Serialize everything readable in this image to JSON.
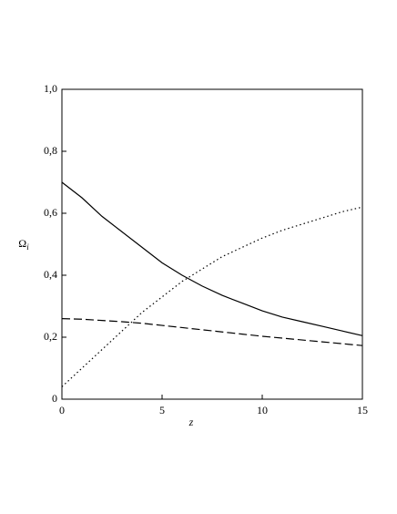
{
  "chart_data": {
    "type": "line",
    "xlabel": "z",
    "ylabel": "Ω",
    "ylabel_subscript": "i",
    "x": [
      0,
      1,
      2,
      3,
      4,
      5,
      6,
      7,
      8,
      9,
      10,
      11,
      12,
      13,
      14,
      15
    ],
    "series": [
      {
        "color": "#000000",
        "dash": "solid",
        "values": [
          0.7,
          0.65,
          0.59,
          0.54,
          0.49,
          0.44,
          0.4,
          0.365,
          0.335,
          0.31,
          0.285,
          0.265,
          0.25,
          0.235,
          0.22,
          0.205
        ]
      },
      {
        "color": "#000000",
        "dash": "dashed",
        "values": [
          0.26,
          0.258,
          0.254,
          0.25,
          0.245,
          0.238,
          0.231,
          0.224,
          0.217,
          0.21,
          0.203,
          0.197,
          0.191,
          0.185,
          0.179,
          0.173
        ]
      },
      {
        "color": "#000000",
        "dash": "dotted",
        "values": [
          0.04,
          0.1,
          0.16,
          0.22,
          0.28,
          0.33,
          0.38,
          0.42,
          0.46,
          0.49,
          0.52,
          0.545,
          0.565,
          0.585,
          0.605,
          0.62
        ]
      }
    ],
    "xlim": [
      0,
      15
    ],
    "xticks": [
      0,
      5,
      10,
      15
    ],
    "ylim": [
      0,
      1.0
    ],
    "yticks": [
      0,
      {
        "value": 0.2,
        "label": "0,2"
      },
      {
        "value": 0.4,
        "label": "0,4"
      },
      {
        "value": 0.6,
        "label": "0,6"
      },
      {
        "value": 0.8,
        "label": "0,8"
      },
      {
        "value": 1.0,
        "label": "1,0"
      }
    ]
  }
}
